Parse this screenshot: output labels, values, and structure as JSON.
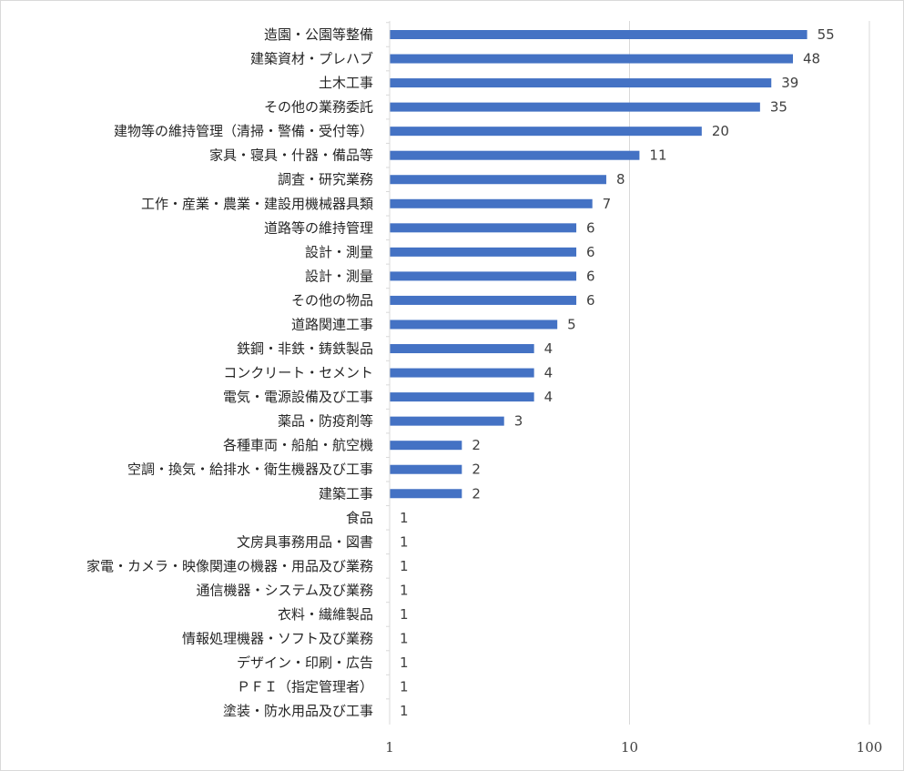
{
  "chart_data": {
    "type": "bar",
    "orientation": "horizontal",
    "x_scale": "log",
    "xlim": [
      1,
      100
    ],
    "x_ticks": [
      "1",
      "10",
      "100"
    ],
    "grid": "vertical major gridlines",
    "legend": "none",
    "bar_color": "#4472c4",
    "categories": [
      "造園・公園等整備",
      "建築資材・プレハブ",
      "土木工事",
      "その他の業務委託",
      "建物等の維持管理（清掃・警備・受付等）",
      "家具・寝具・什器・備品等",
      "調査・研究業務",
      "工作・産業・農業・建設用機械器具類",
      "道路等の維持管理",
      "設計・測量",
      "設計・測量",
      "その他の物品",
      "道路関連工事",
      "鉄鋼・非鉄・鋳鉄製品",
      "コンクリート・セメント",
      "電気・電源設備及び工事",
      "薬品・防疫剤等",
      "各種車両・船舶・航空機",
      "空調・換気・給排水・衛生機器及び工事",
      "建築工事",
      "食品",
      "文房具事務用品・図書",
      "家電・カメラ・映像関連の機器・用品及び業務",
      "通信機器・システム及び業務",
      "衣料・繊維製品",
      "情報処理機器・ソフト及び業務",
      "デザイン・印刷・広告",
      "ＰＦＩ（指定管理者）",
      "塗装・防水用品及び工事"
    ],
    "values": [
      55,
      48,
      39,
      35,
      20,
      11,
      8,
      7,
      6,
      6,
      6,
      6,
      5,
      4,
      4,
      4,
      3,
      2,
      2,
      2,
      1,
      1,
      1,
      1,
      1,
      1,
      1,
      1,
      1
    ],
    "value_labels": [
      "55",
      "48",
      "39",
      "35",
      "20",
      "11",
      "8",
      "7",
      "6",
      "6",
      "6",
      "6",
      "5",
      "4",
      "4",
      "4",
      "3",
      "2",
      "2",
      "2",
      "1",
      "1",
      "1",
      "1",
      "1",
      "1",
      "1",
      "1",
      "1"
    ]
  }
}
